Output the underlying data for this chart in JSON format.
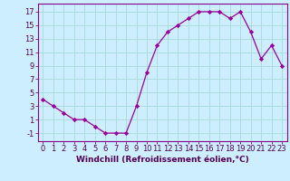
{
  "x": [
    0,
    1,
    2,
    3,
    4,
    5,
    6,
    7,
    8,
    9,
    10,
    11,
    12,
    13,
    14,
    15,
    16,
    17,
    18,
    19,
    20,
    21,
    22,
    23
  ],
  "y": [
    4,
    3,
    2,
    1,
    1,
    0,
    -1,
    -1,
    -1,
    3,
    8,
    12,
    14,
    15,
    16,
    17,
    17,
    17,
    16,
    17,
    14,
    10,
    12,
    9
  ],
  "line_color": "#990099",
  "marker": "D",
  "marker_size": 2.2,
  "bg_color": "#cceeff",
  "grid_color": "#aadddd",
  "xlabel": "Windchill (Refroidissement éolien,°C)",
  "xlabel_fontsize": 6.5,
  "ylabel_ticks": [
    -1,
    1,
    3,
    5,
    7,
    9,
    11,
    13,
    15,
    17
  ],
  "xlim": [
    -0.5,
    23.5
  ],
  "ylim": [
    -2.2,
    18.2
  ],
  "tick_fontsize": 6.0,
  "spine_color": "#880088",
  "label_color": "#550055"
}
